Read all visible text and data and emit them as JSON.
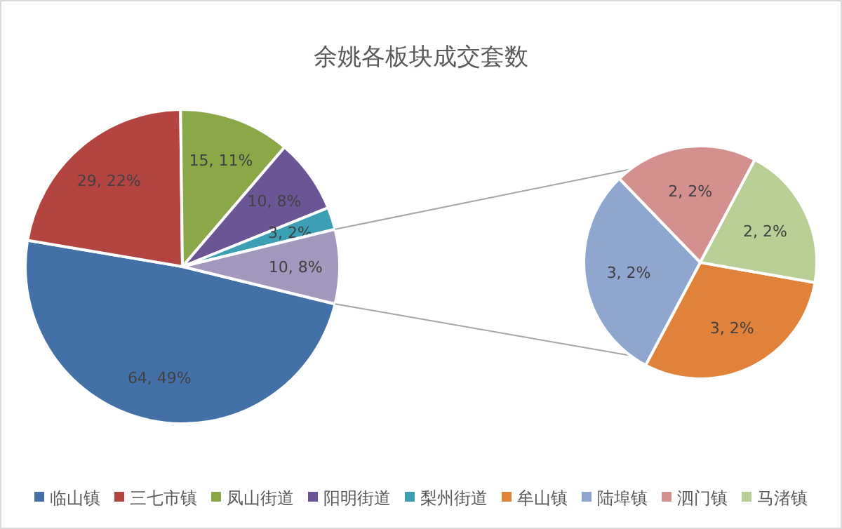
{
  "chart_data": [
    {
      "type": "pie",
      "title": "余姚各板块成交套数",
      "legend": "bottom",
      "categories": [
        "临山镇",
        "三七市镇",
        "凤山街道",
        "阳明街道",
        "梨州街道",
        null
      ],
      "values": [
        64,
        29,
        15,
        10,
        3,
        10
      ],
      "colors": [
        "#4470a8",
        "#b4443f",
        "#8aa848",
        "#6b5595",
        "#3ba0b4",
        "#a497be"
      ],
      "value_labels": [
        "64, 49%",
        "29, 22%",
        "15, 11%",
        "10, 8%",
        "3, 2%",
        "10, 8%"
      ]
    },
    {
      "type": "pie",
      "legend": "bottom",
      "categories": [
        "牟山镇",
        "陆埠镇",
        "泗门镇",
        "马渚镇"
      ],
      "values": [
        3,
        3,
        2,
        2
      ],
      "colors": [
        "#e0823a",
        "#8fa6cf",
        "#d48f8f",
        "#b8cf96"
      ],
      "value_labels": [
        "3, 2%",
        "3, 2%",
        "2, 2%",
        "2, 2%"
      ]
    }
  ]
}
